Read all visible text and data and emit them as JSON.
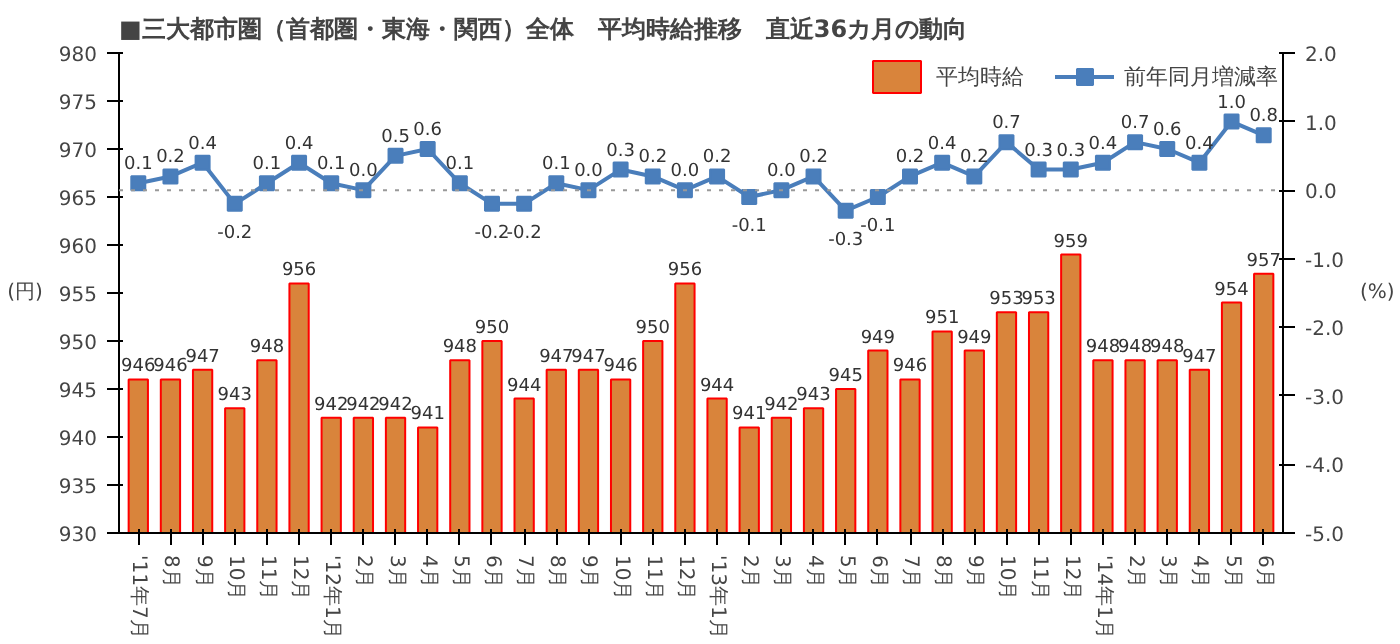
{
  "chart_data": {
    "type": "bar",
    "title": "■三大都市圏（首都圏・東海・関西）全体　平均時給推移　直近36カ月の動向",
    "ylabel": "(円)",
    "y2label": "(%)",
    "categories": [
      "'11年7月",
      "8月",
      "9月",
      "10月",
      "11月",
      "12月",
      "'12年1月",
      "2月",
      "3月",
      "4月",
      "5月",
      "6月",
      "7月",
      "8月",
      "9月",
      "10月",
      "11月",
      "12月",
      "'13年1月",
      "2月",
      "3月",
      "4月",
      "5月",
      "6月",
      "7月",
      "8月",
      "9月",
      "10月",
      "11月",
      "12月",
      "'14年1月",
      "2月",
      "3月",
      "4月",
      "5月",
      "6月"
    ],
    "series": [
      {
        "name": "平均時給",
        "color": "#d9843b",
        "values": [
          946,
          946,
          947,
          943,
          948,
          956,
          942,
          942,
          942,
          941,
          948,
          950,
          944,
          947,
          947,
          946,
          950,
          956,
          944,
          941,
          942,
          943,
          945,
          949,
          946,
          951,
          949,
          953,
          953,
          959,
          948,
          948,
          948,
          947,
          954,
          957
        ]
      },
      {
        "name": "前年同月増減率",
        "type": "line",
        "axis": "y2",
        "color": "#4a7ebb",
        "marker": "square",
        "value_labels": [
          "0.1",
          "0.2",
          "0.4",
          "-0.2",
          "0.1",
          "0.4",
          "0.1",
          "0.0",
          "0.5",
          "0.6",
          "0.1",
          "-0.2",
          "-0.2",
          "0.1",
          "0.0",
          "0.3",
          "0.2",
          "0.0",
          "0.2",
          "-0.1",
          "0.0",
          "0.2",
          "-0.3",
          "-0.1",
          "0.2",
          "0.4",
          "0.2",
          "0.7",
          "0.3",
          "0.3",
          "0.4",
          "0.7",
          "0.6",
          "0.4",
          "1.0",
          "0.8"
        ],
        "values": [
          0.1,
          0.2,
          0.4,
          -0.2,
          0.1,
          0.4,
          0.1,
          0.0,
          0.5,
          0.6,
          0.1,
          -0.2,
          -0.2,
          0.1,
          0.0,
          0.3,
          0.2,
          0.0,
          0.2,
          -0.1,
          0.0,
          0.2,
          -0.3,
          -0.1,
          0.2,
          0.4,
          0.2,
          0.7,
          0.3,
          0.3,
          0.4,
          0.7,
          0.6,
          0.4,
          1.0,
          0.8
        ]
      }
    ],
    "ylim": [
      930,
      980
    ],
    "yticks": [
      930,
      935,
      940,
      945,
      950,
      955,
      960,
      965,
      970,
      975,
      980
    ],
    "y2lim": [
      -5,
      2
    ],
    "y2ticks": [
      {
        "value": -5,
        "label": "-5.0"
      },
      {
        "value": -4,
        "label": "-4.0"
      },
      {
        "value": -3,
        "label": "-3.0"
      },
      {
        "value": -2,
        "label": "-2.0"
      },
      {
        "value": -1,
        "label": "-1.0"
      },
      {
        "value": 0,
        "label": "0.0"
      },
      {
        "value": 1,
        "label": "1.0"
      },
      {
        "value": 2,
        "label": "2.0"
      }
    ],
    "ref_lines": [
      {
        "axis": "y2",
        "value": 0,
        "color": "#999999",
        "line_style": "dotted"
      }
    ],
    "data_labels": true,
    "grid": false,
    "legend": "top right"
  }
}
